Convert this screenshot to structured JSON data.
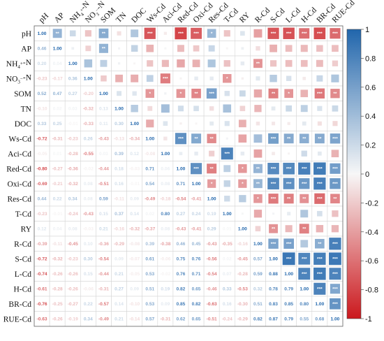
{
  "chart_data": {
    "type": "heatmap",
    "variables": [
      "pH",
      "AP",
      "NH₄⁺-N",
      "NO₃⁻-N",
      "SOM",
      "TN",
      "DOC",
      "Ws-Cd",
      "Aci-Cd",
      "Red-Cd",
      "Oxi-Cd",
      "Res-Cd",
      "T-Cd",
      "RY",
      "R-Cd",
      "S-Cd",
      "L-Cd",
      "H-Cd",
      "BR-Cd",
      "RUE-Cd"
    ],
    "lower_triangle_values": [
      [
        1.0
      ],
      [
        0.46,
        1.0
      ],
      [
        0.2,
        0.04,
        1.0
      ],
      [
        -0.23,
        -0.17,
        0.36,
        1.0
      ],
      [
        0.52,
        0.47,
        0.27,
        -0.2,
        1.0
      ],
      [
        -0.1,
        0.02,
        0.03,
        -0.32,
        0.13,
        1.0
      ],
      [
        0.33,
        0.25,
        -0.01,
        -0.33,
        0.11,
        0.3,
        1.0
      ],
      [
        -0.72,
        -0.31,
        -0.23,
        0.26,
        -0.43,
        -0.13,
        -0.34,
        1.0
      ],
      [
        -0.05,
        0.01,
        -0.28,
        -0.55,
        0.03,
        0.39,
        0.12,
        -0.08,
        1.0
      ],
      [
        -0.8,
        -0.27,
        -0.36,
        -0.02,
        -0.44,
        0.18,
        -0.03,
        0.71,
        0.06,
        1.0
      ],
      [
        -0.69,
        -0.21,
        -0.32,
        0.08,
        -0.51,
        0.16,
        -0.01,
        0.54,
        0.08,
        0.71,
        1.0
      ],
      [
        0.44,
        0.22,
        0.34,
        0.08,
        0.59,
        -0.11,
        0.09,
        -0.49,
        -0.18,
        -0.54,
        -0.41,
        1.0
      ],
      [
        -0.23,
        -0.01,
        -0.24,
        -0.43,
        0.15,
        0.37,
        0.14,
        0.02,
        0.8,
        0.27,
        0.24,
        0.19,
        1.0
      ],
      [
        0.12,
        0.04,
        0.08,
        -0.03,
        0.21,
        -0.16,
        -0.32,
        -0.37,
        0.08,
        -0.43,
        -0.41,
        0.29,
        0.01,
        1.0
      ],
      [
        -0.39,
        -0.11,
        -0.45,
        0.1,
        -0.36,
        -0.29,
        -0.08,
        0.39,
        -0.38,
        0.46,
        0.45,
        -0.43,
        -0.35,
        -0.16,
        1.0
      ],
      [
        -0.72,
        -0.32,
        -0.23,
        0.3,
        -0.54,
        0.09,
        -0.07,
        0.61,
        -0.06,
        0.75,
        0.76,
        -0.56,
        0.02,
        -0.45,
        0.57,
        1.0
      ],
      [
        -0.74,
        -0.26,
        -0.26,
        0.15,
        -0.44,
        0.21,
        -0.05,
        0.53,
        -0.02,
        0.76,
        0.71,
        -0.54,
        0.07,
        -0.28,
        0.59,
        0.88,
        1.0
      ],
      [
        -0.61,
        -0.28,
        -0.26,
        -0.06,
        -0.31,
        0.27,
        0.09,
        0.51,
        0.19,
        0.82,
        0.65,
        -0.46,
        0.33,
        -0.53,
        0.32,
        0.78,
        0.79,
        1.0
      ],
      [
        -0.76,
        -0.25,
        -0.27,
        0.22,
        -0.57,
        0.14,
        -0.1,
        0.53,
        0.09,
        0.85,
        0.82,
        -0.63,
        0.16,
        -0.3,
        0.51,
        0.83,
        0.85,
        0.8,
        1.0
      ],
      [
        -0.63,
        -0.26,
        -0.19,
        0.34,
        -0.49,
        0.21,
        -0.14,
        0.57,
        -0.31,
        0.62,
        0.65,
        -0.51,
        -0.24,
        -0.29,
        0.82,
        0.87,
        0.79,
        0.55,
        0.68,
        1.0
      ]
    ],
    "upper_triangle": "squares sized and coloured by correlation, stars mark significance",
    "significance_markers": [
      "*",
      "**",
      "***"
    ],
    "colorbar": {
      "min": -1,
      "max": 1,
      "ticks": [
        "1",
        "0.8",
        "0.6",
        "0.4",
        "0.2",
        "0",
        "-0.2",
        "-0.4",
        "-0.6",
        "-0.8",
        "-1"
      ]
    },
    "colors": {
      "positive": "#2166ac",
      "neutral": "#f7f7f7",
      "negative": "#cb181d"
    }
  }
}
